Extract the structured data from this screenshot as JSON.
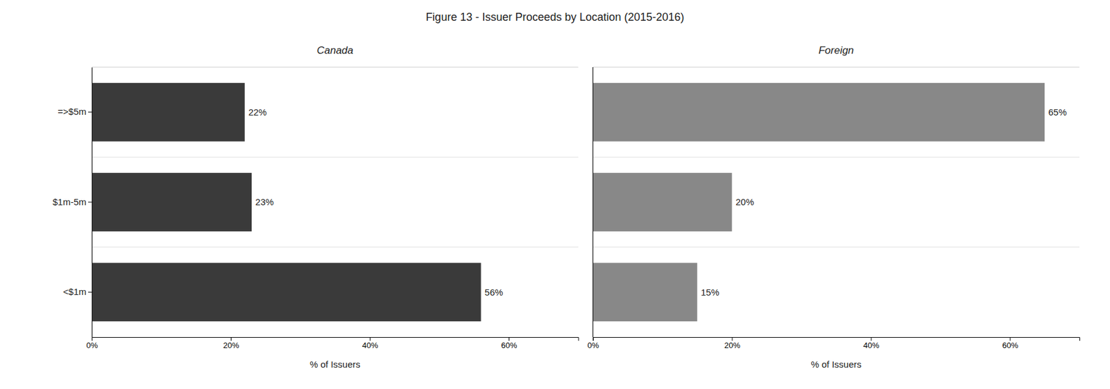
{
  "chart_data": {
    "type": "bar",
    "orientation": "horizontal",
    "title": "Figure 13 - Issuer Proceeds by Location (2015-2016)",
    "categories": [
      "<$1m",
      "$1m-5m",
      "=>$5m"
    ],
    "series": [
      {
        "name": "Canada",
        "color": "#3a3a3a",
        "values": [
          56,
          23,
          22
        ],
        "value_labels": [
          "56%",
          "23%",
          "22%"
        ]
      },
      {
        "name": "Foreign",
        "color": "#888888",
        "values": [
          15,
          20,
          65
        ],
        "value_labels": [
          "15%",
          "20%",
          "65%"
        ]
      }
    ],
    "xlabel": "% of Issuers",
    "xlim": [
      0,
      70
    ],
    "xticks": [
      {
        "value": 0,
        "label": "0%"
      },
      {
        "value": 20,
        "label": "20%"
      },
      {
        "value": 40,
        "label": "40%"
      },
      {
        "value": 60,
        "label": "60%"
      }
    ],
    "data_labels": true,
    "grid": false
  }
}
